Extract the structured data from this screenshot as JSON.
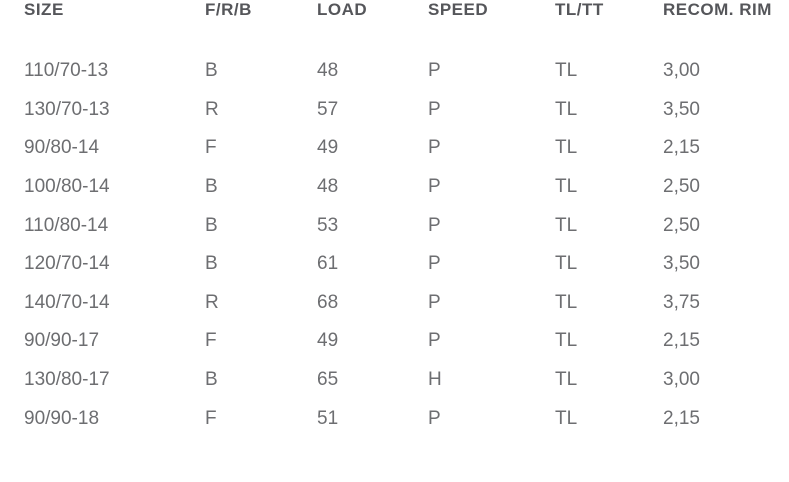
{
  "colors": {
    "background": "#ffffff",
    "header_text": "#55565a",
    "body_text": "#6d6e71"
  },
  "table": {
    "columns": [
      {
        "key": "size",
        "label": "SIZE"
      },
      {
        "key": "frb",
        "label": "F/R/B"
      },
      {
        "key": "load",
        "label": "LOAD"
      },
      {
        "key": "speed",
        "label": "SPEED"
      },
      {
        "key": "tltt",
        "label": "TL/TT"
      },
      {
        "key": "rim",
        "label": "RECOM. RIM"
      }
    ],
    "rows": [
      [
        "110/70-13",
        "B",
        "48",
        "P",
        "TL",
        "3,00"
      ],
      [
        "130/70-13",
        "R",
        "57",
        "P",
        "TL",
        "3,50"
      ],
      [
        "90/80-14",
        "F",
        "49",
        "P",
        "TL",
        "2,15"
      ],
      [
        "100/80-14",
        "B",
        "48",
        "P",
        "TL",
        "2,50"
      ],
      [
        "110/80-14",
        "B",
        "53",
        "P",
        "TL",
        "2,50"
      ],
      [
        "120/70-14",
        "B",
        "61",
        "P",
        "TL",
        "3,50"
      ],
      [
        "140/70-14",
        "R",
        "68",
        "P",
        "TL",
        "3,75"
      ],
      [
        "90/90-17",
        "F",
        "49",
        "P",
        "TL",
        "2,15"
      ],
      [
        "130/80-17",
        "B",
        "65",
        "H",
        "TL",
        "3,00"
      ],
      [
        "90/90-18",
        "F",
        "51",
        "P",
        "TL",
        "2,15"
      ]
    ]
  }
}
